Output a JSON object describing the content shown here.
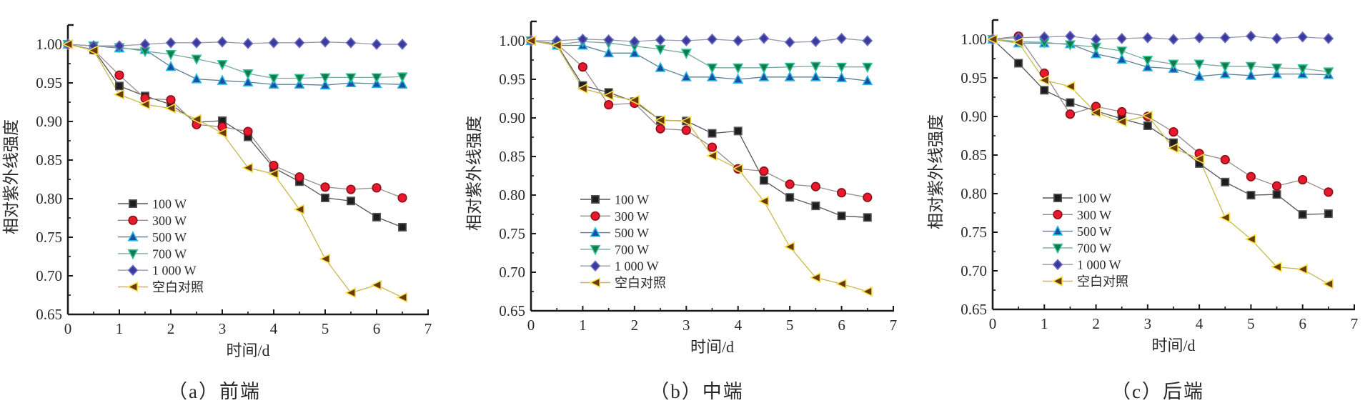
{
  "figure": {
    "captions": [
      "（a）前端",
      "（b）中端",
      "（c）后端"
    ]
  },
  "chart_data": [
    {
      "type": "line",
      "title": "（a）前端",
      "xlabel": "时间/d",
      "ylabel": "相对紫外线强度",
      "xlim": [
        0,
        7
      ],
      "ylim": [
        0.65,
        1.025
      ],
      "xticks": [
        "0",
        "1",
        "2",
        "3",
        "4",
        "5",
        "6",
        "7"
      ],
      "yticks": [
        "0.65",
        "0.70",
        "0.75",
        "0.80",
        "0.85",
        "0.90",
        "0.95",
        "1.00"
      ],
      "grid": false,
      "legend_position": "lower-left",
      "x": [
        0,
        0.5,
        1,
        1.5,
        2,
        2.5,
        3,
        3.5,
        4,
        4.5,
        5,
        5.5,
        6,
        6.5
      ],
      "series": [
        {
          "name": "100 W",
          "marker": "square",
          "values": [
            1.0,
            0.993,
            0.946,
            0.933,
            0.922,
            0.899,
            0.901,
            0.88,
            0.84,
            0.822,
            0.801,
            0.797,
            0.776,
            0.763
          ]
        },
        {
          "name": "300 W",
          "marker": "circle",
          "values": [
            1.0,
            0.993,
            0.96,
            0.93,
            0.928,
            0.896,
            0.893,
            0.887,
            0.843,
            0.828,
            0.815,
            0.812,
            0.814,
            0.801
          ]
        },
        {
          "name": "500 W",
          "marker": "triangle-up",
          "values": [
            1.0,
            0.998,
            0.995,
            0.993,
            0.971,
            0.955,
            0.953,
            0.951,
            0.948,
            0.948,
            0.947,
            0.95,
            0.949,
            0.948
          ]
        },
        {
          "name": "700 W",
          "marker": "triangle-down",
          "values": [
            1.0,
            0.998,
            0.996,
            0.991,
            0.987,
            0.981,
            0.974,
            0.962,
            0.956,
            0.956,
            0.957,
            0.957,
            0.957,
            0.958
          ]
        },
        {
          "name": "1 000 W",
          "marker": "diamond",
          "values": [
            1.0,
            0.998,
            0.998,
            1.0,
            1.002,
            1.002,
            1.003,
            1.001,
            1.002,
            1.002,
            1.003,
            1.002,
            1.0,
            1.0
          ]
        },
        {
          "name": "空白对照",
          "marker": "triangle-left",
          "values": [
            1.0,
            0.992,
            0.935,
            0.922,
            0.917,
            0.903,
            0.885,
            0.84,
            0.832,
            0.786,
            0.722,
            0.678,
            0.688,
            0.672
          ]
        }
      ]
    },
    {
      "type": "line",
      "title": "（b）中端",
      "xlabel": "时间/d",
      "ylabel": "相对紫外线强度",
      "xlim": [
        0,
        7
      ],
      "ylim": [
        0.65,
        1.025
      ],
      "xticks": [
        "0",
        "1",
        "2",
        "3",
        "4",
        "5",
        "6",
        "7"
      ],
      "yticks": [
        "0.65",
        "0.70",
        "0.75",
        "0.80",
        "0.85",
        "0.90",
        "0.95",
        "1.00"
      ],
      "grid": false,
      "legend_position": "lower-left",
      "x": [
        0,
        0.5,
        1,
        1.5,
        2,
        2.5,
        3,
        3.5,
        4,
        4.5,
        5,
        5.5,
        6,
        6.5
      ],
      "series": [
        {
          "name": "100 W",
          "marker": "square",
          "values": [
            1.0,
            0.995,
            0.942,
            0.933,
            0.921,
            0.897,
            0.896,
            0.88,
            0.883,
            0.819,
            0.797,
            0.786,
            0.773,
            0.771
          ]
        },
        {
          "name": "300 W",
          "marker": "circle",
          "values": [
            1.0,
            0.996,
            0.966,
            0.917,
            0.919,
            0.886,
            0.884,
            0.862,
            0.834,
            0.831,
            0.814,
            0.811,
            0.803,
            0.797
          ]
        },
        {
          "name": "500 W",
          "marker": "triangle-up",
          "values": [
            1.0,
            0.994,
            0.994,
            0.984,
            0.984,
            0.965,
            0.953,
            0.953,
            0.95,
            0.953,
            0.953,
            0.953,
            0.952,
            0.948
          ]
        },
        {
          "name": "700 W",
          "marker": "triangle-down",
          "values": [
            1.0,
            0.995,
            0.999,
            0.997,
            0.993,
            0.989,
            0.984,
            0.965,
            0.965,
            0.965,
            0.966,
            0.967,
            0.966,
            0.966
          ]
        },
        {
          "name": "1 000 W",
          "marker": "diamond",
          "values": [
            1.0,
            1.0,
            1.002,
            1.001,
            0.999,
            1.001,
            1.0,
            1.002,
            1.0,
            1.003,
            0.998,
            0.999,
            1.003,
            1.0
          ]
        },
        {
          "name": "空白对照",
          "marker": "triangle-left",
          "values": [
            1.0,
            0.994,
            0.938,
            0.929,
            0.923,
            0.897,
            0.896,
            0.851,
            0.834,
            0.792,
            0.733,
            0.693,
            0.685,
            0.675
          ]
        }
      ]
    },
    {
      "type": "line",
      "title": "（c）后端",
      "xlabel": "时间/d",
      "ylabel": "相对紫外线强度",
      "xlim": [
        0,
        7
      ],
      "ylim": [
        0.65,
        1.025
      ],
      "xticks": [
        "0",
        "1",
        "2",
        "3",
        "4",
        "5",
        "6",
        "7"
      ],
      "yticks": [
        "0.65",
        "0.70",
        "0.75",
        "0.80",
        "0.85",
        "0.90",
        "0.95",
        "1.00"
      ],
      "grid": false,
      "legend_position": "lower-left",
      "x": [
        0,
        0.5,
        1,
        1.5,
        2,
        2.5,
        3,
        3.5,
        4,
        4.5,
        5,
        5.5,
        6,
        6.5
      ],
      "series": [
        {
          "name": "100 W",
          "marker": "square",
          "values": [
            1.0,
            0.969,
            0.934,
            0.918,
            0.907,
            0.897,
            0.888,
            0.866,
            0.839,
            0.815,
            0.798,
            0.799,
            0.773,
            0.774
          ]
        },
        {
          "name": "300 W",
          "marker": "circle",
          "values": [
            1.0,
            1.004,
            0.956,
            0.903,
            0.913,
            0.906,
            0.9,
            0.88,
            0.852,
            0.844,
            0.822,
            0.81,
            0.818,
            0.802
          ]
        },
        {
          "name": "500 W",
          "marker": "triangle-up",
          "values": [
            1.0,
            0.995,
            0.995,
            0.994,
            0.981,
            0.974,
            0.964,
            0.962,
            0.952,
            0.955,
            0.953,
            0.955,
            0.955,
            0.954
          ]
        },
        {
          "name": "700 W",
          "marker": "triangle-down",
          "values": [
            1.0,
            0.997,
            0.996,
            0.993,
            0.99,
            0.985,
            0.973,
            0.968,
            0.968,
            0.965,
            0.965,
            0.963,
            0.962,
            0.958
          ]
        },
        {
          "name": "1 000 W",
          "marker": "diamond",
          "values": [
            1.0,
            1.002,
            1.003,
            1.004,
            1.0,
            1.001,
            1.002,
            1.0,
            1.002,
            1.002,
            1.004,
            1.001,
            1.003,
            1.001
          ]
        },
        {
          "name": "空白对照",
          "marker": "triangle-left",
          "values": [
            1.0,
            0.996,
            0.947,
            0.939,
            0.905,
            0.893,
            0.901,
            0.859,
            0.845,
            0.769,
            0.741,
            0.705,
            0.702,
            0.683
          ]
        }
      ]
    }
  ],
  "series_colors": {
    "100 W": {
      "fill": "#1e1e1e",
      "edge": "#555555",
      "line": "#555555"
    },
    "300 W": {
      "fill": "#e8192c",
      "edge": "#8a0f18",
      "line": "#9a8a8a"
    },
    "500 W": {
      "fill": "#1a4fa0",
      "edge": "#29b6e6",
      "line": "#5a7f95"
    },
    "700 W": {
      "fill": "#137a45",
      "edge": "#2fc0a0",
      "line": "#7aa9a0"
    },
    "1 000 W": {
      "fill": "#3a3a9c",
      "edge": "#6a6ac0",
      "line": "#9a9ab0"
    },
    "空白对照": {
      "fill": "#6a3a0c",
      "edge": "#f5e04a",
      "line": "#c9b84a"
    }
  }
}
